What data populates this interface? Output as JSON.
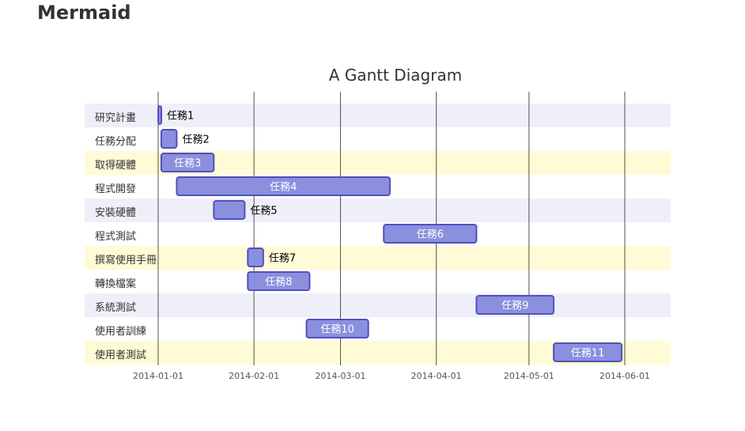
{
  "page": {
    "header": "Mermaid"
  },
  "colors": {
    "task_fill": "#8a90dd",
    "task_stroke": "#534fbc",
    "section_even": "#efeffa",
    "section_odd": "#ffffff",
    "section_highlight": "#fffbd6",
    "grid": "#333333"
  },
  "chart_data": {
    "type": "gantt",
    "title": "A Gantt Diagram",
    "xlim": [
      "2013-12-30",
      "2014-06-16"
    ],
    "ticks": [
      "2014-01-01",
      "2014-02-01",
      "2014-03-01",
      "2014-04-01",
      "2014-05-01",
      "2014-06-01"
    ],
    "rows": [
      {
        "label": "研究計畫",
        "task": "任務1",
        "start": "2014-01-01",
        "end": "2014-01-02",
        "band": "even"
      },
      {
        "label": "任務分配",
        "task": "任務2",
        "start": "2014-01-02",
        "end": "2014-01-07",
        "band": "odd"
      },
      {
        "label": "取得硬體",
        "task": "任務3",
        "start": "2014-01-02",
        "end": "2014-01-19",
        "band": "highlight"
      },
      {
        "label": "程式開發",
        "task": "任務4",
        "start": "2014-01-07",
        "end": "2014-03-17",
        "band": "odd"
      },
      {
        "label": "安裝硬體",
        "task": "任務5",
        "start": "2014-01-19",
        "end": "2014-01-29",
        "band": "even"
      },
      {
        "label": "程式測試",
        "task": "任務6",
        "start": "2014-03-15",
        "end": "2014-04-14",
        "band": "odd"
      },
      {
        "label": "撰寫使用手冊",
        "task": "任務7",
        "start": "2014-01-30",
        "end": "2014-02-04",
        "band": "highlight"
      },
      {
        "label": "轉換檔案",
        "task": "任務8",
        "start": "2014-01-30",
        "end": "2014-02-19",
        "band": "odd"
      },
      {
        "label": "系統測試",
        "task": "任務9",
        "start": "2014-04-14",
        "end": "2014-05-09",
        "band": "even"
      },
      {
        "label": "使用者訓練",
        "task": "任務10",
        "start": "2014-02-18",
        "end": "2014-03-10",
        "band": "odd"
      },
      {
        "label": "使用者測試",
        "task": "任務11",
        "start": "2014-05-09",
        "end": "2014-05-31",
        "band": "highlight"
      }
    ]
  }
}
